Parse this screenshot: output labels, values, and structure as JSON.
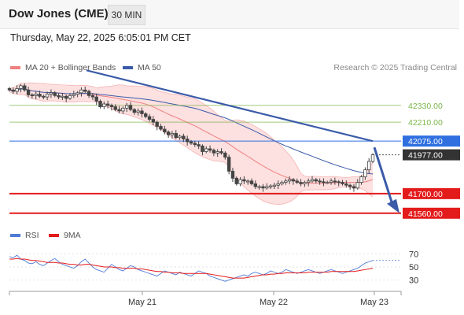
{
  "header": {
    "title": "Dow Jones (CME)",
    "timeframe": "30 MIN",
    "datetime": "Thursday, May 22, 2025 6:05:01 PM CET",
    "credit": "Research © 2025 Trading Central"
  },
  "legend": {
    "ma20": "MA 20 + Bollinger Bands",
    "ma50": "MA 50",
    "rsi": "RSI",
    "rsi_ma": "9MA"
  },
  "colors": {
    "candle": "#444444",
    "bollinger_fill": "#fde0e0",
    "ma20": "#f08080",
    "ma50": "#3b5ba8",
    "trendline": "#3b5ba8",
    "resistance": "#7ab648",
    "pivot": "#2f6fe0",
    "support": "#e31b1b",
    "last_price": "#333333",
    "rsi": "#4f7bd6",
    "rsi_ma": "#e31b1b"
  },
  "chart_data": {
    "type": "candlestick",
    "x_ticks": [
      "May 21",
      "May 22",
      "May 23"
    ],
    "price_range": [
      41480,
      42520
    ],
    "levels": [
      {
        "name": "resistance-2",
        "value": "42330.00",
        "kind": "resistance"
      },
      {
        "name": "resistance-1",
        "value": "42210.00",
        "kind": "resistance"
      },
      {
        "name": "pivot",
        "value": "42075.00",
        "kind": "pivot"
      },
      {
        "name": "last-price",
        "value": "41977.00",
        "kind": "last"
      },
      {
        "name": "support-1",
        "value": "41700.00",
        "kind": "support"
      },
      {
        "name": "support-2",
        "value": "41560.00",
        "kind": "support"
      }
    ],
    "trendline": {
      "start": 42580,
      "end": 42075
    },
    "forecast_target": 41560,
    "candles_close": [
      42440,
      42430,
      42450,
      42470,
      42440,
      42405,
      42400,
      42410,
      42395,
      42390,
      42410,
      42420,
      42400,
      42390,
      42395,
      42380,
      42400,
      42410,
      42420,
      42440,
      42430,
      42400,
      42390,
      42360,
      42320,
      42340,
      42330,
      42320,
      42300,
      42290,
      42310,
      42330,
      42300,
      42280,
      42290,
      42270,
      42250,
      42230,
      42210,
      42180,
      42160,
      42140,
      42120,
      42130,
      42100,
      42110,
      42090,
      42070,
      42060,
      42050,
      42040,
      42000,
      42020,
      42010,
      41990,
      42000,
      41990,
      41960,
      41860,
      41810,
      41770,
      41800,
      41790,
      41790,
      41770,
      41750,
      41750,
      41740,
      41750,
      41755,
      41760,
      41770,
      41780,
      41790,
      41800,
      41790,
      41780,
      41770,
      41780,
      41790,
      41800,
      41790,
      41785,
      41780,
      41780,
      41790,
      41785,
      41780,
      41770,
      41760,
      41750,
      41740,
      41780,
      41820,
      41870,
      41930,
      41977
    ],
    "rsi": {
      "ticks": [
        70,
        50,
        30
      ],
      "range": [
        15,
        85
      ],
      "rsi_values": [
        66,
        64,
        68,
        62,
        60,
        56,
        55,
        58,
        54,
        52,
        56,
        60,
        63,
        58,
        54,
        52,
        50,
        48,
        52,
        58,
        62,
        56,
        50,
        46,
        44,
        42,
        48,
        54,
        50,
        46,
        44,
        48,
        52,
        50,
        46,
        44,
        42,
        40,
        38,
        36,
        40,
        44,
        42,
        40,
        38,
        42,
        40,
        38,
        36,
        40,
        44,
        42,
        40,
        36,
        34,
        32,
        30,
        28,
        30,
        32,
        34,
        36,
        38,
        36,
        40,
        42,
        40,
        38,
        40,
        44,
        42,
        40,
        42,
        46,
        44,
        42,
        40,
        42,
        44,
        46,
        44,
        42,
        40,
        42,
        44,
        46,
        44,
        42,
        40,
        42,
        44,
        46,
        48,
        52,
        56,
        58,
        60
      ],
      "ma_values": [
        62,
        62,
        63,
        62,
        62,
        61,
        60,
        60,
        59,
        58,
        57,
        57,
        57,
        56,
        56,
        55,
        54,
        54,
        53,
        53,
        54,
        54,
        53,
        52,
        51,
        50,
        50,
        50,
        49,
        49,
        48,
        48,
        48,
        48,
        47,
        47,
        46,
        45,
        44,
        43,
        43,
        42,
        42,
        41,
        41,
        41,
        40,
        40,
        40,
        40,
        40,
        40,
        40,
        39,
        38,
        37,
        36,
        35,
        34,
        33,
        33,
        33,
        33,
        34,
        35,
        36,
        37,
        38,
        38,
        39,
        39,
        40,
        40,
        41,
        41,
        41,
        41,
        41,
        41,
        42,
        42,
        42,
        42,
        42,
        42,
        43,
        43,
        43,
        43,
        43,
        43,
        43,
        44,
        45,
        46,
        47,
        48
      ]
    }
  }
}
